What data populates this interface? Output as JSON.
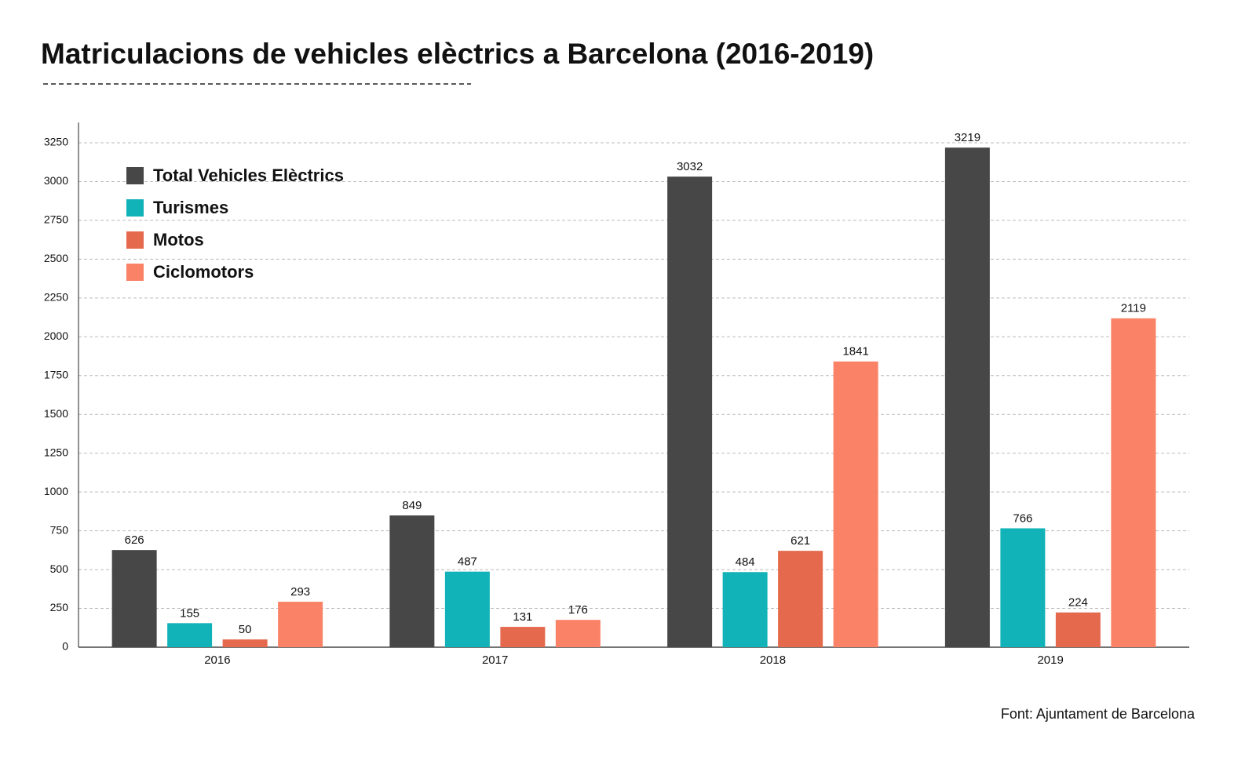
{
  "chart_data": {
    "type": "bar",
    "title": "Matriculacions de vehicles elèctrics a Barcelona (2016-2019)",
    "source": "Font: Ajuntament de Barcelona",
    "categories": [
      "2016",
      "2017",
      "2018",
      "2019"
    ],
    "series": [
      {
        "name": "Total Vehicles Elèctrics",
        "color": "#474747",
        "values": [
          626,
          849,
          3032,
          3219
        ]
      },
      {
        "name": "Turismes",
        "color": "#12b3b8",
        "values": [
          155,
          487,
          484,
          766
        ]
      },
      {
        "name": "Motos",
        "color": "#e5694d",
        "values": [
          50,
          131,
          621,
          224
        ]
      },
      {
        "name": "Ciclomotors",
        "color": "#fa8266",
        "values": [
          293,
          176,
          1841,
          2119
        ]
      }
    ],
    "ylim": [
      0,
      3380
    ],
    "yticks": [
      0,
      250,
      500,
      750,
      1000,
      1250,
      1500,
      1750,
      2000,
      2250,
      2500,
      2750,
      3000,
      3250
    ],
    "grid": true,
    "legend": "upper-left"
  }
}
